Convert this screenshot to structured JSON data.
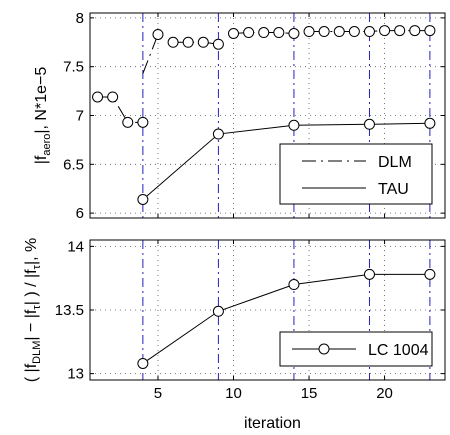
{
  "chart_data": [
    {
      "type": "line",
      "xlabel": "",
      "ylabel_parts": [
        "|f",
        "aero",
        "|, N*1e−5"
      ],
      "xlim": [
        0.5,
        24
      ],
      "ylim": [
        5.95,
        8.05
      ],
      "x_ticks": [
        5,
        10,
        15,
        20
      ],
      "y_ticks": [
        6,
        6.5,
        7,
        7.5,
        8
      ],
      "y_tick_labels": [
        "6",
        "6.5",
        "7",
        "7.5",
        "8"
      ],
      "grid": "dotted",
      "vertical_markers_x": [
        4,
        9,
        14,
        19,
        23
      ],
      "legend_position": "bottom-right",
      "series": [
        {
          "name": "DLM",
          "style": "dash-dot",
          "marker": "circle",
          "color": "#000000",
          "segments": [
            [
              [
                1,
                7.19
              ],
              [
                2,
                7.19
              ],
              [
                3,
                6.93
              ],
              [
                4,
                6.93
              ]
            ],
            [
              [
                4,
                7.43
              ],
              [
                5,
                7.83
              ]
            ],
            [
              [
                6,
                7.75
              ],
              [
                7,
                7.75
              ],
              [
                8,
                7.75
              ],
              [
                9,
                7.73
              ]
            ],
            [
              [
                10,
                7.84
              ],
              [
                11,
                7.85
              ],
              [
                12,
                7.85
              ],
              [
                13,
                7.85
              ],
              [
                14,
                7.84
              ],
              [
                15,
                7.86
              ],
              [
                16,
                7.86
              ],
              [
                17,
                7.86
              ],
              [
                18,
                7.86
              ],
              [
                19,
                7.86
              ],
              [
                20,
                7.87
              ],
              [
                21,
                7.87
              ],
              [
                22,
                7.87
              ],
              [
                23,
                7.87
              ]
            ]
          ],
          "marker_points": [
            [
              1,
              7.19
            ],
            [
              2,
              7.19
            ],
            [
              3,
              6.93
            ],
            [
              4,
              6.93
            ],
            [
              5,
              7.83
            ],
            [
              6,
              7.75
            ],
            [
              7,
              7.75
            ],
            [
              8,
              7.75
            ],
            [
              9,
              7.73
            ],
            [
              10,
              7.84
            ],
            [
              11,
              7.85
            ],
            [
              12,
              7.85
            ],
            [
              13,
              7.85
            ],
            [
              14,
              7.84
            ],
            [
              15,
              7.86
            ],
            [
              16,
              7.86
            ],
            [
              17,
              7.86
            ],
            [
              18,
              7.86
            ],
            [
              19,
              7.86
            ],
            [
              20,
              7.87
            ],
            [
              21,
              7.87
            ],
            [
              22,
              7.87
            ],
            [
              23,
              7.87
            ]
          ]
        },
        {
          "name": "TAU",
          "style": "solid",
          "marker": "circle",
          "color": "#000000",
          "segments": [
            [
              [
                4,
                6.14
              ],
              [
                9,
                6.81
              ],
              [
                14,
                6.9
              ],
              [
                19,
                6.91
              ],
              [
                23,
                6.92
              ]
            ]
          ],
          "marker_points": [
            [
              4,
              6.14
            ],
            [
              9,
              6.81
            ],
            [
              14,
              6.9
            ],
            [
              19,
              6.91
            ],
            [
              23,
              6.92
            ]
          ]
        }
      ],
      "legend": [
        {
          "label": "DLM",
          "style": "dash-dot"
        },
        {
          "label": "TAU",
          "style": "solid"
        }
      ]
    },
    {
      "type": "line",
      "xlabel": "iteration",
      "ylabel_parts": [
        "( |f",
        "DLM",
        "| − |f",
        "τ",
        "| ) / |f",
        "τ",
        "|, %"
      ],
      "xlim": [
        0.5,
        24
      ],
      "ylim": [
        12.95,
        14.05
      ],
      "x_ticks": [
        5,
        10,
        15,
        20
      ],
      "x_tick_labels": [
        "5",
        "10",
        "15",
        "20"
      ],
      "y_ticks": [
        13,
        13.5,
        14
      ],
      "y_tick_labels": [
        "13",
        "13.5",
        "14"
      ],
      "grid": "dotted",
      "vertical_markers_x": [
        4,
        9,
        14,
        19,
        23
      ],
      "legend_position": "bottom-right",
      "series": [
        {
          "name": "LC 1004",
          "style": "solid",
          "marker": "circle",
          "color": "#000000",
          "segments": [
            [
              [
                4,
                13.08
              ],
              [
                9,
                13.49
              ],
              [
                14,
                13.7
              ],
              [
                19,
                13.78
              ],
              [
                23,
                13.78
              ]
            ]
          ],
          "marker_points": [
            [
              4,
              13.08
            ],
            [
              9,
              13.49
            ],
            [
              14,
              13.7
            ],
            [
              19,
              13.78
            ],
            [
              23,
              13.78
            ]
          ]
        }
      ],
      "legend": [
        {
          "label": "LC 1004",
          "style": "solid-circle"
        }
      ]
    }
  ],
  "colors": {
    "marker_line": "#2222bb",
    "axis": "#000000",
    "grid": "#555555"
  }
}
